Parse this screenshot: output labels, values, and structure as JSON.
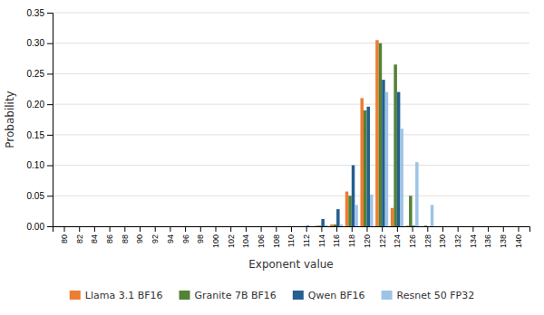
{
  "chart_data": {
    "type": "bar",
    "xlabel": "Exponent value",
    "ylabel": "Probability",
    "x": [
      80,
      82,
      84,
      86,
      88,
      90,
      92,
      94,
      96,
      98,
      100,
      102,
      104,
      106,
      108,
      110,
      112,
      114,
      116,
      118,
      120,
      122,
      124,
      126,
      128,
      130,
      132,
      134,
      136,
      138,
      140
    ],
    "xlim": [
      78.5,
      141.5
    ],
    "xticks": [
      80,
      82,
      84,
      86,
      88,
      90,
      92,
      94,
      96,
      98,
      100,
      102,
      104,
      106,
      108,
      110,
      112,
      114,
      116,
      118,
      120,
      122,
      124,
      126,
      128,
      130,
      132,
      134,
      136,
      138,
      140
    ],
    "ylim": [
      0,
      0.35
    ],
    "yticks": [
      {
        "value": 0,
        "label": "0.00"
      },
      0.05,
      {
        "value": 0.1,
        "label": "0.10"
      },
      0.15,
      {
        "value": 0.2,
        "label": "0.20"
      },
      0.25,
      {
        "value": 0.3,
        "label": "0.30"
      },
      0.35
    ],
    "grid": true,
    "legend": "bottom",
    "series": [
      {
        "name": "Llama 3.1 BF16",
        "color": "#ED7D31",
        "values": [
          0.0,
          0.0,
          0.0,
          0.0,
          0.0,
          0.0,
          0.0,
          0.0,
          0.0,
          0.0,
          0.0,
          0.0,
          0.0,
          0.0,
          0.0002,
          0.0002,
          0.0002,
          0.001,
          0.003,
          0.057,
          0.21,
          0.305,
          0.03,
          0.001,
          0.0,
          0.0,
          0.0,
          0.0,
          0.0,
          0.0,
          0.0
        ]
      },
      {
        "name": "Granite 7B BF16",
        "color": "#538135",
        "values": [
          0.0,
          0.0,
          0.0,
          0.0,
          0.0,
          0.0,
          0.0,
          0.0,
          0.0,
          0.0,
          0.0,
          0.0,
          0.0,
          0.0,
          0.0002,
          0.0002,
          0.0002,
          0.001,
          0.003,
          0.05,
          0.19,
          0.3,
          0.265,
          0.05,
          0.001,
          0.0,
          0.0,
          0.0,
          0.0,
          0.0,
          0.0
        ]
      },
      {
        "name": "Qwen BF16",
        "color": "#255E91",
        "values": [
          0.0,
          0.0,
          0.0,
          0.0,
          0.0,
          0.0,
          0.0,
          0.0,
          0.0,
          0.0,
          0.0,
          0.0,
          0.0,
          0.0,
          0.0001,
          0.0,
          0.001,
          0.012,
          0.028,
          0.1,
          0.196,
          0.24,
          0.22,
          0.001,
          0.0,
          0.0,
          0.0,
          0.0,
          0.0,
          0.0,
          0.0
        ]
      },
      {
        "name": "Resnet 50 FP32",
        "color": "#9DC3E6",
        "values": [
          0.0,
          0.0,
          0.0,
          0.0,
          0.0,
          0.0,
          0.0,
          0.0,
          0.0,
          0.0,
          0.0,
          0.0,
          0.0,
          0.0,
          0.0,
          0.0,
          0.0,
          0.002,
          0.003,
          0.035,
          0.052,
          0.22,
          0.16,
          0.105,
          0.035,
          0.0,
          0.0,
          0.0,
          0.0,
          0.0,
          0.0
        ]
      }
    ]
  }
}
